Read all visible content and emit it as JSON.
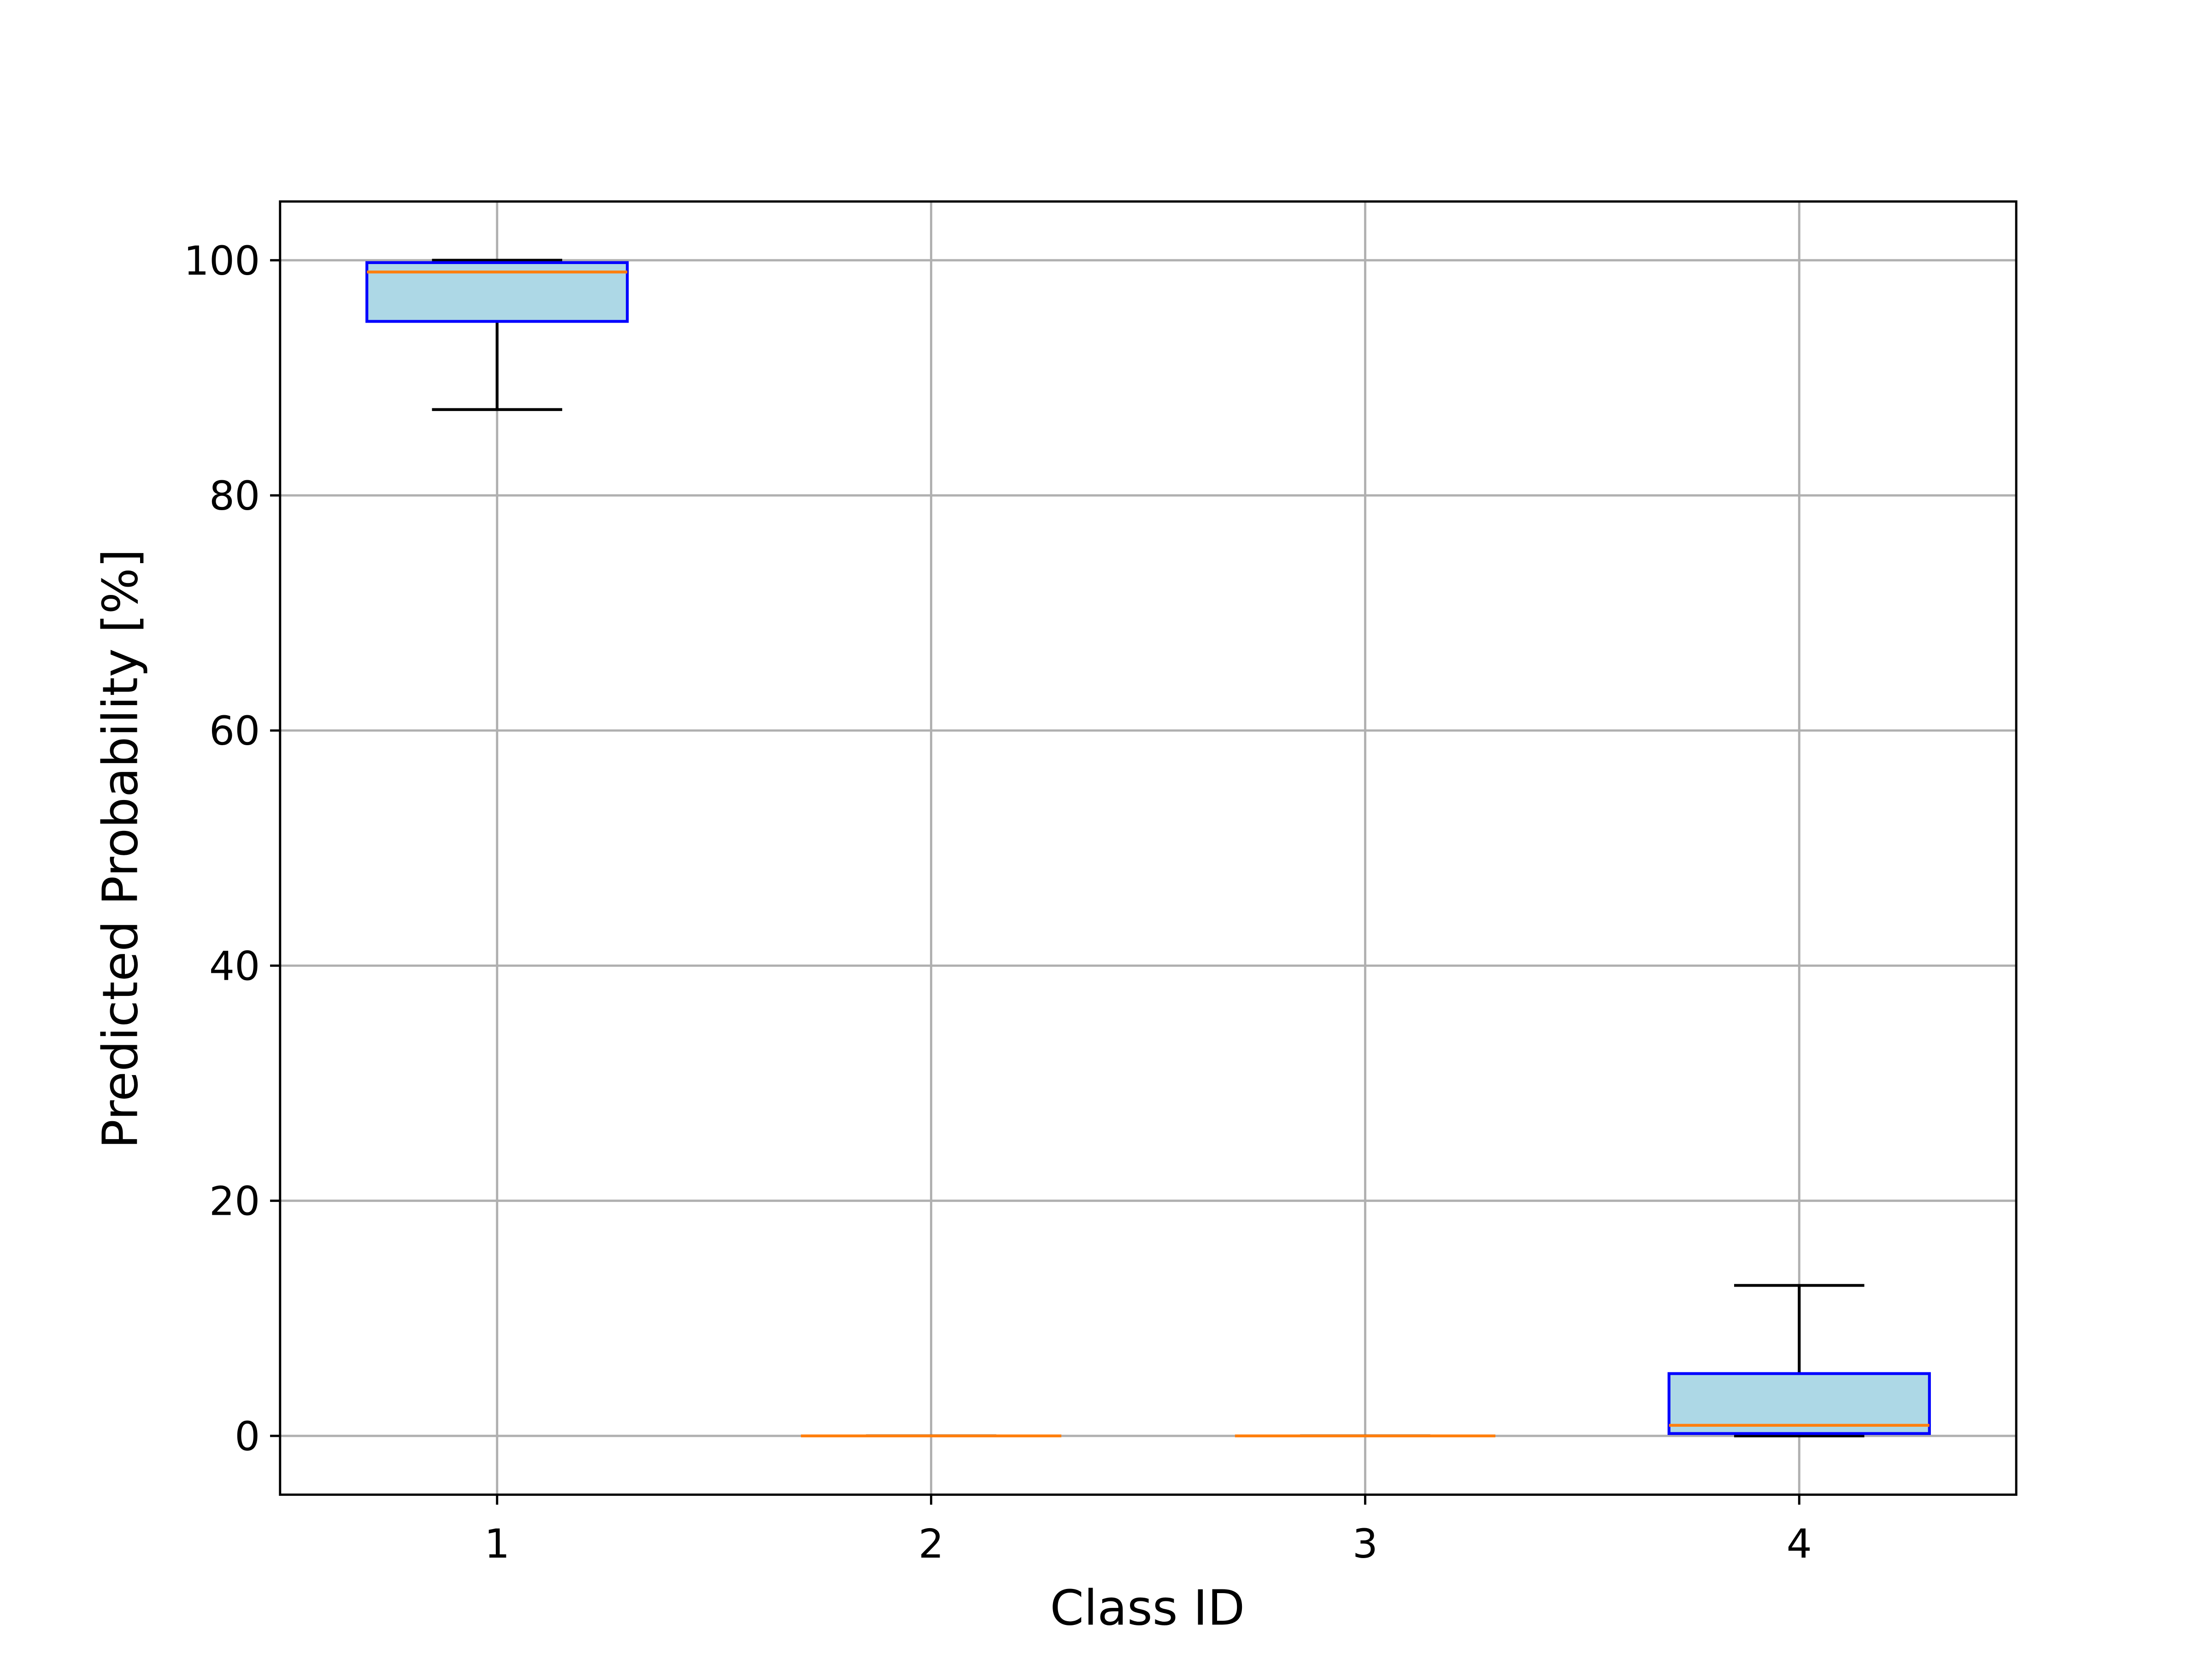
{
  "chart_data": {
    "type": "box",
    "xlabel": "Class ID",
    "ylabel": "Predicted Probability [%]",
    "categories": [
      "1",
      "2",
      "3",
      "4"
    ],
    "boxes": [
      {
        "whislo": 87.3,
        "q1": 94.8,
        "med": 99.0,
        "q3": 99.8,
        "whishi": 100
      },
      {
        "whislo": 0,
        "q1": 0,
        "med": 0,
        "q3": 0,
        "whishi": 0
      },
      {
        "whislo": 0,
        "q1": 0,
        "med": 0,
        "q3": 0,
        "whishi": 0
      },
      {
        "whislo": 0,
        "q1": 0.2,
        "med": 0.9,
        "q3": 5.3,
        "whishi": 12.8
      }
    ],
    "ylim": [
      -5,
      105
    ],
    "yticks": [
      0,
      20,
      40,
      60,
      80,
      100
    ],
    "grid": true,
    "box_color": "#add8e6",
    "edge_color": "#0000ff",
    "median_color": "#ff7f0e",
    "whisker_color": "#000000"
  }
}
